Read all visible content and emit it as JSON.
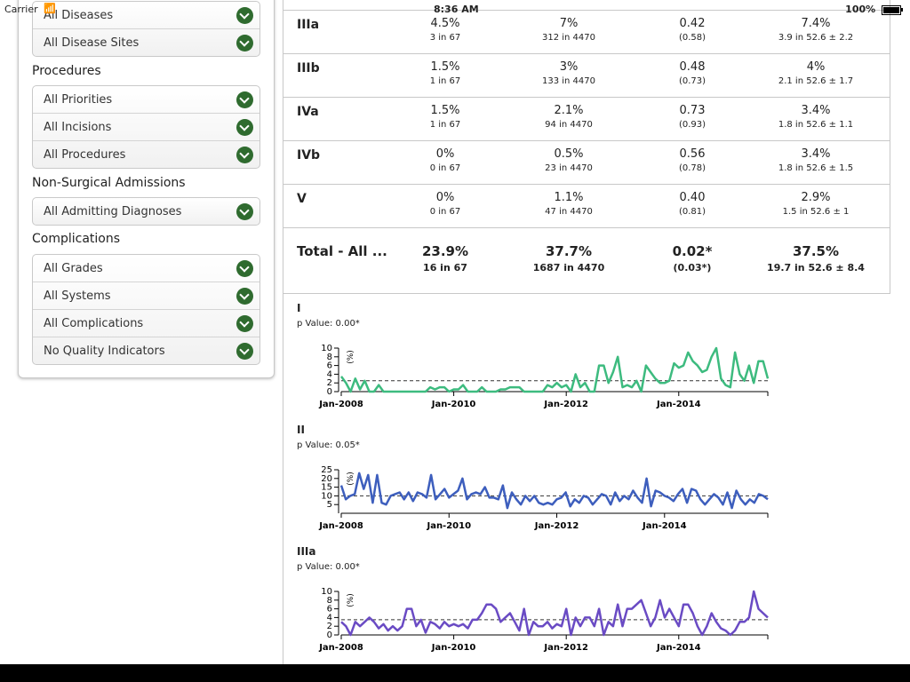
{
  "status": {
    "carrier": "Carrier",
    "time": "8:36 AM",
    "battery": "100%"
  },
  "sidebar": {
    "groups_top": [
      {
        "items": [
          "All Diseases",
          "All Disease Sites"
        ]
      }
    ],
    "sections": [
      {
        "title": "Procedures",
        "items": [
          "All Priorities",
          "All Incisions",
          "All Procedures"
        ]
      },
      {
        "title": "Non-Surgical Admissions",
        "items": [
          "All Admitting Diagnoses"
        ]
      },
      {
        "title": "Complications",
        "items": [
          "All Grades",
          "All Systems",
          "All Complications",
          "No Quality Indicators"
        ]
      }
    ]
  },
  "table": {
    "rows": [
      {
        "grade": "IIIa",
        "c1": "4.5%",
        "c1s": "3 in 67",
        "c2": "7%",
        "c2s": "312 in 4470",
        "c3": "0.42",
        "c3s": "(0.58)",
        "c4": "7.4%",
        "c4s": "3.9 in 52.6 ± 2.2"
      },
      {
        "grade": "IIIb",
        "c1": "1.5%",
        "c1s": "1 in 67",
        "c2": "3%",
        "c2s": "133 in 4470",
        "c3": "0.48",
        "c3s": "(0.73)",
        "c4": "4%",
        "c4s": "2.1 in 52.6 ± 1.7"
      },
      {
        "grade": "IVa",
        "c1": "1.5%",
        "c1s": "1 in 67",
        "c2": "2.1%",
        "c2s": "94 in 4470",
        "c3": "0.73",
        "c3s": "(0.93)",
        "c4": "3.4%",
        "c4s": "1.8 in 52.6 ± 1.1"
      },
      {
        "grade": "IVb",
        "c1": "0%",
        "c1s": "0 in 67",
        "c2": "0.5%",
        "c2s": "23 in 4470",
        "c3": "0.56",
        "c3s": "(0.78)",
        "c4": "3.4%",
        "c4s": "1.8 in 52.6 ± 1.5"
      },
      {
        "grade": "V",
        "c1": "0%",
        "c1s": "0 in 67",
        "c2": "1.1%",
        "c2s": "47 in 4470",
        "c3": "0.40",
        "c3s": "(0.81)",
        "c4": "2.9%",
        "c4s": "1.5 in 52.6 ± 1"
      }
    ],
    "total": {
      "grade": "Total - All ...",
      "c1": "23.9%",
      "c1s": "16 in 67",
      "c2": "37.7%",
      "c2s": "1687 in 4470",
      "c3": "0.02*",
      "c3s": "(0.03*)",
      "c4": "37.5%",
      "c4s": "19.7 in 52.6 ± 8.4"
    }
  },
  "chart_data": [
    {
      "type": "line",
      "title": "I",
      "subtitle": "p Value: 0.00*",
      "ylabel": "(%)",
      "color": "#3dbb7f",
      "ylim": [
        0,
        10
      ],
      "yticks": [
        "0",
        "2",
        "4",
        "6",
        "8",
        "10"
      ],
      "xticks": [
        "Jan-2008",
        "Jan-2010",
        "Jan-2012",
        "Jan-2014"
      ],
      "reference": 2.5,
      "values": [
        3.5,
        2,
        0,
        3,
        0.5,
        2.5,
        0,
        0,
        1.5,
        0,
        0,
        0,
        0,
        0,
        0,
        0,
        0,
        0,
        0,
        1,
        0.5,
        1,
        1,
        0,
        0.5,
        0.5,
        1.5,
        0,
        0,
        0,
        1,
        0,
        0,
        0,
        0.5,
        0.5,
        1,
        1,
        1,
        0,
        0,
        0,
        0,
        0,
        1.5,
        1,
        2,
        1,
        1.5,
        0,
        4,
        1,
        2,
        0,
        0,
        6,
        6,
        2,
        4.5,
        8,
        1,
        1.5,
        1,
        2.5,
        0,
        6,
        4.5,
        3,
        2,
        2,
        2.5,
        6.5,
        5.5,
        6,
        9,
        7,
        6,
        4.5,
        5,
        8,
        10,
        3,
        1.5,
        1,
        9,
        4,
        2.5,
        6,
        2,
        7,
        7,
        3
      ]
    },
    {
      "type": "line",
      "title": "II",
      "subtitle": "p Value: 0.05*",
      "ylabel": "(%)",
      "color": "#3d5ebd",
      "ylim": [
        0,
        25
      ],
      "yticks": [
        "5",
        "10",
        "15",
        "20",
        "25"
      ],
      "xticks": [
        "Jan-2008",
        "Jan-2010",
        "Jan-2012",
        "Jan-2014"
      ],
      "reference": 10,
      "values": [
        16,
        8,
        10,
        11,
        23,
        14,
        22,
        6,
        22,
        6,
        5,
        10,
        11,
        12,
        8,
        12,
        7,
        12,
        11,
        9,
        22,
        8,
        11,
        14,
        9,
        11,
        13,
        20,
        8,
        11,
        12,
        11,
        15,
        9,
        9,
        8,
        16,
        3,
        12,
        8,
        5,
        10,
        7,
        10,
        6,
        5,
        6,
        5,
        8,
        9,
        12,
        4,
        8,
        6,
        10,
        9,
        5,
        8,
        11,
        10,
        5,
        12,
        7,
        10,
        8,
        13,
        9,
        6,
        20,
        4,
        13,
        12,
        10,
        9,
        7,
        11,
        14,
        6,
        14,
        13,
        8,
        5,
        8,
        11,
        9,
        5,
        12,
        3,
        13,
        8,
        5,
        8,
        6,
        11,
        10,
        8
      ]
    },
    {
      "type": "line",
      "title": "IIIa",
      "subtitle": "p Value: 0.00*",
      "ylabel": "(%)",
      "color": "#6a4bc4",
      "ylim": [
        0,
        10
      ],
      "yticks": [
        "0",
        "2",
        "4",
        "6",
        "8",
        "10"
      ],
      "xticks": [
        "Jan-2008",
        "Jan-2010",
        "Jan-2012",
        "Jan-2014"
      ],
      "reference": 3.5,
      "values": [
        3,
        2,
        0,
        3,
        2,
        3,
        4,
        3,
        1.5,
        2.5,
        1,
        2,
        1,
        2,
        6,
        6,
        2,
        3.5,
        0.5,
        3,
        2.5,
        1.5,
        3,
        2,
        2.5,
        2,
        2.5,
        1.5,
        3.5,
        3.5,
        5,
        7,
        7,
        6,
        3,
        4,
        5,
        3,
        1,
        6,
        0,
        3,
        2,
        2,
        3,
        1.5,
        2.5,
        2,
        6,
        0,
        4,
        2,
        4,
        4,
        2,
        6,
        0,
        3,
        2,
        7,
        2,
        6,
        6,
        7,
        8,
        5,
        2,
        4,
        8,
        4,
        6,
        4,
        2,
        7,
        7,
        5,
        2,
        0,
        2,
        5,
        3,
        1.5,
        1,
        0,
        1,
        3,
        3,
        4,
        10.5,
        6,
        5,
        4
      ]
    }
  ]
}
